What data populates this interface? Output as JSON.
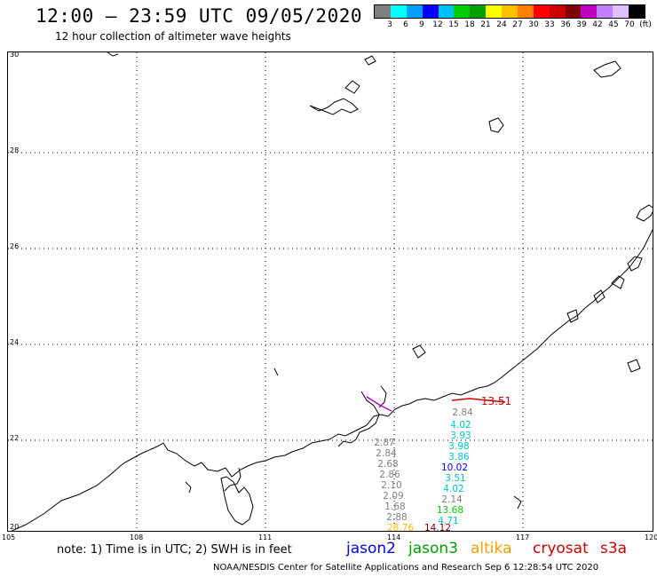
{
  "header": {
    "title": "12:00 – 23:59 UTC 09/05/2020",
    "subtitle": "12 hour collection of altimeter wave heights"
  },
  "color_scale": {
    "colors": [
      "#808080",
      "#00ffff",
      "#00a0ff",
      "#0000ff",
      "#00c0ff",
      "#00cc00",
      "#00a000",
      "#ffff00",
      "#ffc000",
      "#ff8000",
      "#ff0000",
      "#cc0000",
      "#800000",
      "#c000c0",
      "#c080ff",
      "#e0c0ff",
      "#000000"
    ],
    "labels": [
      "3",
      "6",
      "9",
      "12",
      "15",
      "18",
      "21",
      "24",
      "27",
      "30",
      "33",
      "36",
      "39",
      "42",
      "45",
      "70",
      "(ft)"
    ]
  },
  "axes": {
    "lat_labels": [
      "30",
      "28",
      "26",
      "24",
      "22",
      "20"
    ],
    "lon_labels": [
      "105",
      "108",
      "111",
      "114",
      "117",
      "120"
    ]
  },
  "observations": [
    {
      "value": "2.84",
      "color": "#808080"
    },
    {
      "value": "4.02",
      "color": "#00c8c8"
    },
    {
      "value": "3.93",
      "color": "#00c8c8"
    },
    {
      "value": "3.98",
      "color": "#00c8c8"
    },
    {
      "value": "3.86",
      "color": "#00c8c8"
    },
    {
      "value": "10.02",
      "color": "#0000ff"
    },
    {
      "value": "3.51",
      "color": "#00c8c8"
    },
    {
      "value": "4.02",
      "color": "#00c8c8"
    },
    {
      "value": "2.14",
      "color": "#808080"
    },
    {
      "value": "13.68",
      "color": "#00cc00"
    },
    {
      "value": "4.71",
      "color": "#00c8c8"
    },
    {
      "value": "2.87",
      "color": "#808080"
    },
    {
      "value": "2.84",
      "color": "#808080"
    },
    {
      "value": "2.68",
      "color": "#808080"
    },
    {
      "value": "2.86",
      "color": "#808080"
    },
    {
      "value": "2.10",
      "color": "#808080"
    },
    {
      "value": "2.09",
      "color": "#808080"
    },
    {
      "value": "1.68",
      "color": "#808080"
    },
    {
      "value": "2.88",
      "color": "#808080"
    },
    {
      "value": "28.76",
      "color": "#ffc000"
    },
    {
      "value": "14.12",
      "color": "#800000"
    },
    {
      "value": "13.51",
      "color": "#cc0000"
    }
  ],
  "footer": {
    "note": "note: 1) Time is in UTC; 2) SWH is in feet",
    "satellites": [
      {
        "name": "jason2",
        "color": "#0000ff"
      },
      {
        "name": "jason3",
        "color": "#00a000"
      },
      {
        "name": "altika",
        "color": "#ff9900"
      },
      {
        "name": "cryosat",
        "color": "#cc0000"
      },
      {
        "name": "s3a",
        "color": "#cc0000"
      }
    ],
    "credit": "NOAA/NESDIS Center for Satellite Applications and Research    Sep  6 12:28:54 UTC 2020"
  }
}
